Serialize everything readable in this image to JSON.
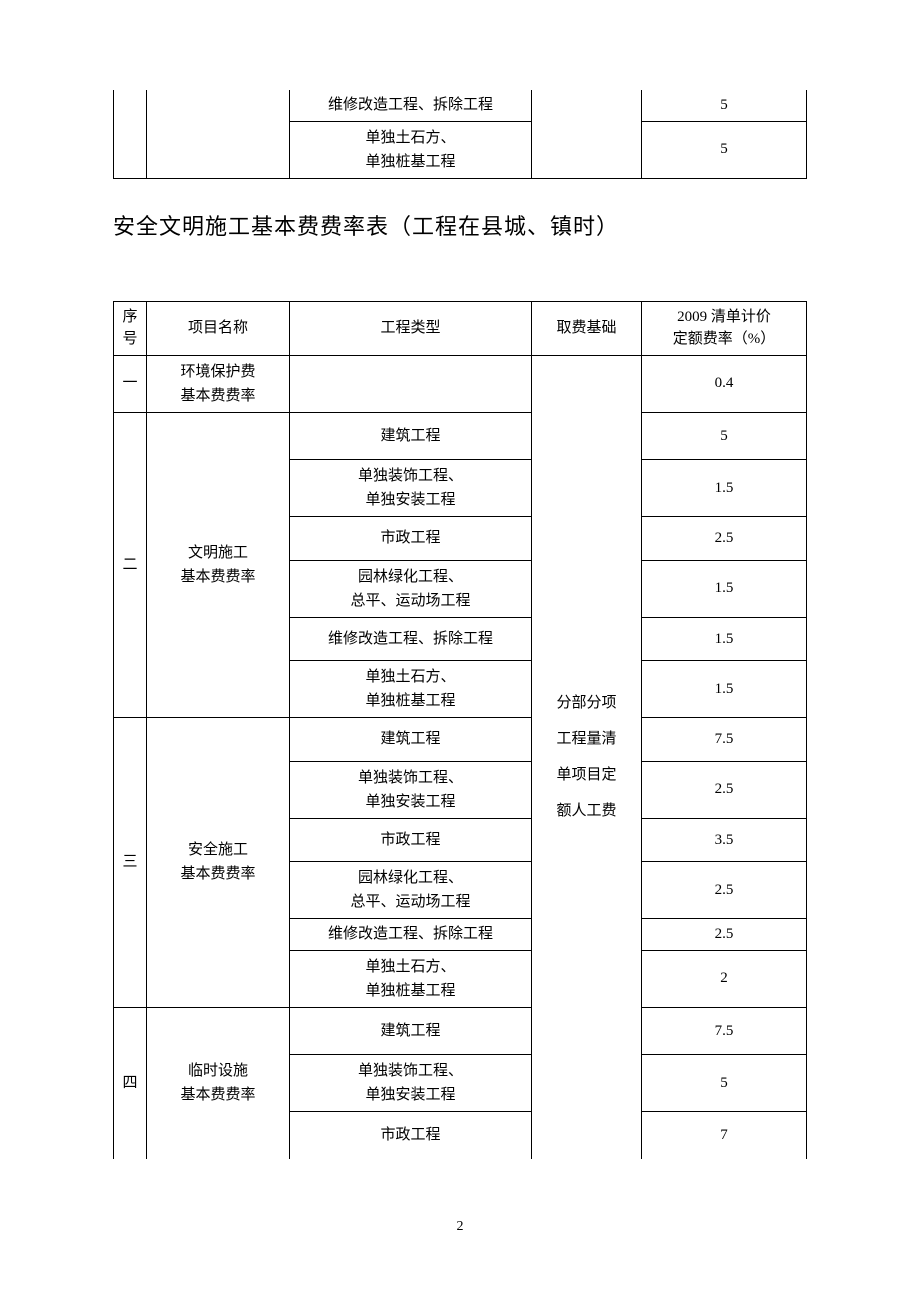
{
  "topTable": {
    "rows": [
      {
        "type": "维修改造工程、拆除工程",
        "rate": "5"
      },
      {
        "type_line1": "单独土石方、",
        "type_line2": "单独桩基工程",
        "rate": "5"
      }
    ]
  },
  "title": "安全文明施工基本费费率表（工程在县城、镇时）",
  "mainTable": {
    "headers": {
      "seq_line1": "序",
      "seq_line2": "号",
      "name": "项目名称",
      "type": "工程类型",
      "base": "取费基础",
      "rate_line1": "2009 清单计价",
      "rate_line2": "定额费率（%）"
    },
    "base_line1": "分部分项",
    "base_line2": "工程量清",
    "base_line3": "单项目定",
    "base_line4": "额人工费",
    "groups": [
      {
        "seq": "一",
        "name_line1": "环境保护费",
        "name_line2": "基本费费率",
        "rows": [
          {
            "type": "",
            "rate": "0.4"
          }
        ]
      },
      {
        "seq": "二",
        "name_line1": "文明施工",
        "name_line2": "基本费费率",
        "rows": [
          {
            "type": "建筑工程",
            "rate": "5"
          },
          {
            "type_line1": "单独装饰工程、",
            "type_line2": "单独安装工程",
            "rate": "1.5"
          },
          {
            "type": "市政工程",
            "rate": "2.5"
          },
          {
            "type_line1": "园林绿化工程、",
            "type_line2": "总平、运动场工程",
            "rate": "1.5"
          },
          {
            "type": "维修改造工程、拆除工程",
            "rate": "1.5"
          },
          {
            "type_line1": "单独土石方、",
            "type_line2": "单独桩基工程",
            "rate": "1.5"
          }
        ]
      },
      {
        "seq": "三",
        "name_line1": "安全施工",
        "name_line2": "基本费费率",
        "rows": [
          {
            "type": "建筑工程",
            "rate": "7.5"
          },
          {
            "type_line1": "单独装饰工程、",
            "type_line2": "单独安装工程",
            "rate": "2.5"
          },
          {
            "type": "市政工程",
            "rate": "3.5"
          },
          {
            "type_line1": "园林绿化工程、",
            "type_line2": "总平、运动场工程",
            "rate": "2.5"
          },
          {
            "type": "维修改造工程、拆除工程",
            "rate": "2.5"
          },
          {
            "type_line1": "单独土石方、",
            "type_line2": "单独桩基工程",
            "rate": "2"
          }
        ]
      },
      {
        "seq": "四",
        "name_line1": "临时设施",
        "name_line2": "基本费费率",
        "rows": [
          {
            "type": "建筑工程",
            "rate": "7.5"
          },
          {
            "type_line1": "单独装饰工程、",
            "type_line2": "单独安装工程",
            "rate": "5"
          },
          {
            "type": "市政工程",
            "rate": "7"
          }
        ]
      }
    ]
  },
  "pageNumber": "2",
  "style": {
    "text_color": "#000000",
    "background_color": "#ffffff",
    "border_color": "#000000",
    "title_fontsize": 22,
    "cell_fontsize": 15,
    "font_family": "SimSun"
  }
}
